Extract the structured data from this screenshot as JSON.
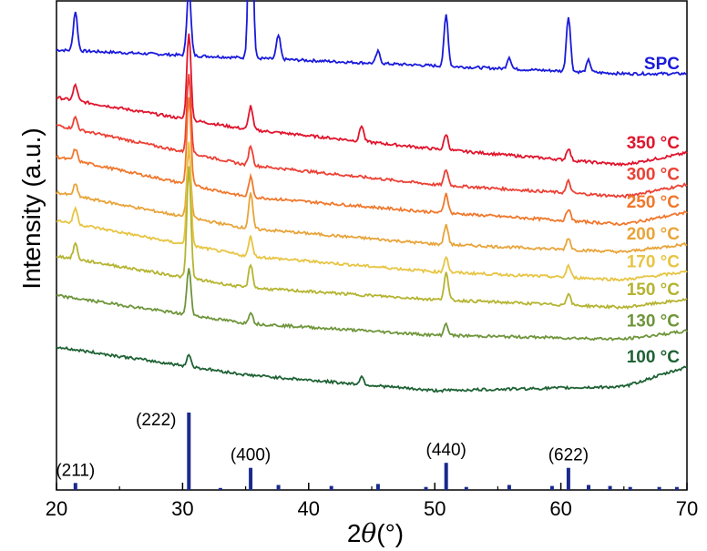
{
  "chart_data": {
    "type": "line",
    "xlabel_prefix": "2",
    "xlabel_symbol": "θ",
    "xlabel_suffix": "(°)",
    "ylabel": "Intensity (a.u.)",
    "xlim": [
      20,
      70
    ],
    "x_ticks": [
      "20",
      "30",
      "40",
      "50",
      "60",
      "70"
    ],
    "y_scale": "arbitrary units, stacked offsets",
    "grid": false,
    "legend": "inline labels at right of each trace",
    "peak_positions_2theta": [
      21.5,
      30.5,
      35.4,
      37.6,
      41.8,
      45.5,
      50.9,
      55.9,
      60.6
    ],
    "series": [
      {
        "name": "SPC",
        "color": "#1a1adb",
        "baseline": [
          [
            20,
            0.92
          ],
          [
            35,
            0.9
          ],
          [
            50,
            0.88
          ],
          [
            65,
            0.86
          ],
          [
            70,
            0.86
          ]
        ],
        "peaks": [
          [
            21.5,
            0.1
          ],
          [
            30.5,
            0.17
          ],
          [
            35.4,
            0.57
          ],
          [
            37.6,
            0.06
          ],
          [
            45.5,
            0.03
          ],
          [
            50.9,
            0.13
          ],
          [
            55.9,
            0.03
          ],
          [
            60.6,
            0.14
          ],
          [
            62.2,
            0.03
          ]
        ]
      },
      {
        "name": "350 °C",
        "color": "#e0142c",
        "baseline": [
          [
            20,
            0.8
          ],
          [
            35,
            0.72
          ],
          [
            50,
            0.67
          ],
          [
            65,
            0.63
          ],
          [
            70,
            0.66
          ]
        ],
        "peaks": [
          [
            21.5,
            0.04
          ],
          [
            30.5,
            0.22
          ],
          [
            35.4,
            0.06
          ],
          [
            44.2,
            0.04
          ],
          [
            50.9,
            0.04
          ],
          [
            60.6,
            0.03
          ]
        ]
      },
      {
        "name": "300 °C",
        "color": "#ec4034",
        "baseline": [
          [
            20,
            0.73
          ],
          [
            35,
            0.63
          ],
          [
            50,
            0.58
          ],
          [
            65,
            0.55
          ],
          [
            70,
            0.58
          ]
        ],
        "peaks": [
          [
            21.5,
            0.03
          ],
          [
            30.5,
            0.2
          ],
          [
            35.4,
            0.05
          ],
          [
            50.9,
            0.04
          ],
          [
            60.6,
            0.03
          ]
        ]
      },
      {
        "name": "250 °C",
        "color": "#f0782c",
        "baseline": [
          [
            20,
            0.65
          ],
          [
            35,
            0.55
          ],
          [
            50,
            0.51
          ],
          [
            65,
            0.48
          ],
          [
            70,
            0.51
          ]
        ],
        "peaks": [
          [
            21.5,
            0.03
          ],
          [
            30.5,
            0.22
          ],
          [
            35.4,
            0.05
          ],
          [
            50.9,
            0.05
          ],
          [
            60.6,
            0.03
          ]
        ]
      },
      {
        "name": "200 °C",
        "color": "#e8a43a",
        "baseline": [
          [
            20,
            0.56
          ],
          [
            35,
            0.47
          ],
          [
            50,
            0.43
          ],
          [
            65,
            0.41
          ],
          [
            70,
            0.43
          ]
        ],
        "peaks": [
          [
            21.5,
            0.03
          ],
          [
            30.5,
            0.17
          ],
          [
            35.4,
            0.09
          ],
          [
            50.9,
            0.05
          ],
          [
            60.6,
            0.03
          ]
        ]
      },
      {
        "name": "170 °C",
        "color": "#e7c543",
        "baseline": [
          [
            20,
            0.49
          ],
          [
            35,
            0.4
          ],
          [
            50,
            0.36
          ],
          [
            65,
            0.34
          ],
          [
            70,
            0.36
          ]
        ],
        "peaks": [
          [
            21.5,
            0.04
          ],
          [
            30.5,
            0.26
          ],
          [
            35.4,
            0.05
          ],
          [
            50.9,
            0.04
          ],
          [
            60.6,
            0.03
          ]
        ]
      },
      {
        "name": "150 °C",
        "color": "#b5b431",
        "baseline": [
          [
            20,
            0.4
          ],
          [
            35,
            0.32
          ],
          [
            50,
            0.29
          ],
          [
            65,
            0.27
          ],
          [
            70,
            0.29
          ]
        ],
        "peaks": [
          [
            21.5,
            0.04
          ],
          [
            30.5,
            0.28
          ],
          [
            35.4,
            0.06
          ],
          [
            50.9,
            0.07
          ],
          [
            60.6,
            0.03
          ]
        ]
      },
      {
        "name": "130 °C",
        "color": "#6e953a",
        "baseline": [
          [
            20,
            0.3
          ],
          [
            35,
            0.23
          ],
          [
            50,
            0.2
          ],
          [
            65,
            0.19
          ],
          [
            70,
            0.21
          ]
        ],
        "peaks": [
          [
            30.5,
            0.12
          ],
          [
            35.4,
            0.03
          ],
          [
            50.9,
            0.03
          ]
        ]
      },
      {
        "name": "100 °C",
        "color": "#1e6234",
        "baseline": [
          [
            20,
            0.17
          ],
          [
            35,
            0.1
          ],
          [
            50,
            0.06
          ],
          [
            65,
            0.07
          ],
          [
            70,
            0.12
          ]
        ],
        "peaks": [
          [
            30.5,
            0.03
          ],
          [
            44.2,
            0.02
          ]
        ]
      }
    ],
    "reference": {
      "color": "#1a2a8c",
      "sticks": [
        [
          21.5,
          0.07
        ],
        [
          30.5,
          0.77
        ],
        [
          33.0,
          0.02
        ],
        [
          35.4,
          0.22
        ],
        [
          37.6,
          0.05
        ],
        [
          41.8,
          0.04
        ],
        [
          45.5,
          0.06
        ],
        [
          49.3,
          0.03
        ],
        [
          50.9,
          0.27
        ],
        [
          52.5,
          0.03
        ],
        [
          55.9,
          0.05
        ],
        [
          59.3,
          0.04
        ],
        [
          60.6,
          0.22
        ],
        [
          62.2,
          0.05
        ],
        [
          63.9,
          0.04
        ],
        [
          65.5,
          0.03
        ],
        [
          67.8,
          0.03
        ],
        [
          69.2,
          0.03
        ]
      ],
      "labels": [
        {
          "text": "(211)",
          "x": 21.5
        },
        {
          "text": "(222)",
          "x": 30.5
        },
        {
          "text": "(400)",
          "x": 35.4
        },
        {
          "text": "(440)",
          "x": 50.9
        },
        {
          "text": "(622)",
          "x": 60.6
        }
      ]
    }
  }
}
